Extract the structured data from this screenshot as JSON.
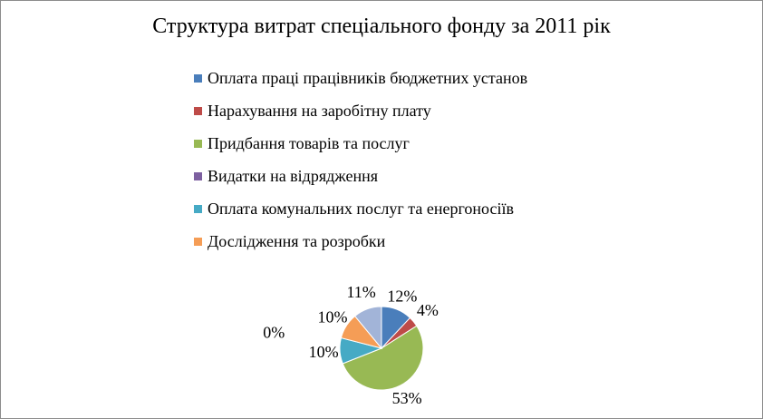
{
  "chart_data": {
    "type": "pie",
    "title": "Структура витрат спеціального фонду за 2011 рік",
    "legend_position": "top",
    "categories": [
      "Оплата праці працівників бюджетних установ",
      "Нарахування на заробітну плату",
      "Придбання товарів та послуг",
      "Видатки на відрядження",
      "Оплата комунальних послуг та енергоносіїв",
      "Дослідження та розробки",
      ""
    ],
    "values": [
      12,
      4,
      53,
      0,
      10,
      10,
      11
    ],
    "labels": [
      "12%",
      "4%",
      "53%",
      "0%",
      "10%",
      "10%",
      "11%"
    ],
    "colors": [
      "#4a7ebb",
      "#be4b48",
      "#98b954",
      "#7d60a0",
      "#46aac5",
      "#f59d56",
      "#a2b4d8"
    ],
    "legend_count": 6
  }
}
